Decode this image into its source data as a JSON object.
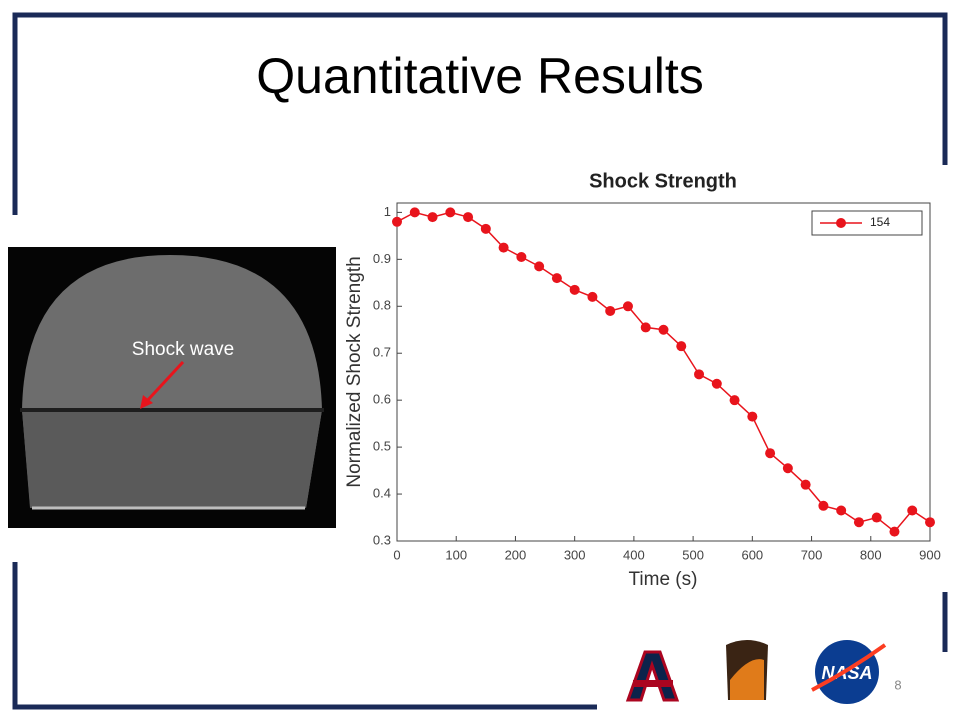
{
  "slide": {
    "title": "Quantitative Results",
    "number": "8"
  },
  "image": {
    "label": "Shock wave"
  },
  "chart_data": {
    "type": "line",
    "title": "Shock Strength",
    "xlabel": "Time (s)",
    "ylabel": "Normalized Shock Strength",
    "x": [
      0,
      30,
      60,
      90,
      120,
      150,
      180,
      210,
      240,
      270,
      300,
      330,
      360,
      390,
      420,
      450,
      480,
      510,
      540,
      570,
      600,
      630,
      660,
      690,
      720,
      750,
      780,
      810,
      840,
      870,
      900
    ],
    "series": [
      {
        "name": "154",
        "color": "#e8141c",
        "values": [
          0.98,
          1.0,
          0.99,
          1.0,
          0.99,
          0.965,
          0.925,
          0.905,
          0.885,
          0.86,
          0.835,
          0.82,
          0.79,
          0.8,
          0.755,
          0.75,
          0.715,
          0.655,
          0.635,
          0.6,
          0.565,
          0.487,
          0.455,
          0.42,
          0.375,
          0.365,
          0.34,
          0.35,
          0.32,
          0.365,
          0.34
        ]
      }
    ],
    "xlim": [
      0,
      900
    ],
    "ylim": [
      0.3,
      1.02
    ],
    "xticks": [
      0,
      100,
      200,
      300,
      400,
      500,
      600,
      700,
      800,
      900
    ],
    "yticks": [
      0.3,
      0.4,
      0.5,
      0.6,
      0.7,
      0.8,
      0.9,
      1
    ],
    "legend": "upper right",
    "grid": false
  }
}
